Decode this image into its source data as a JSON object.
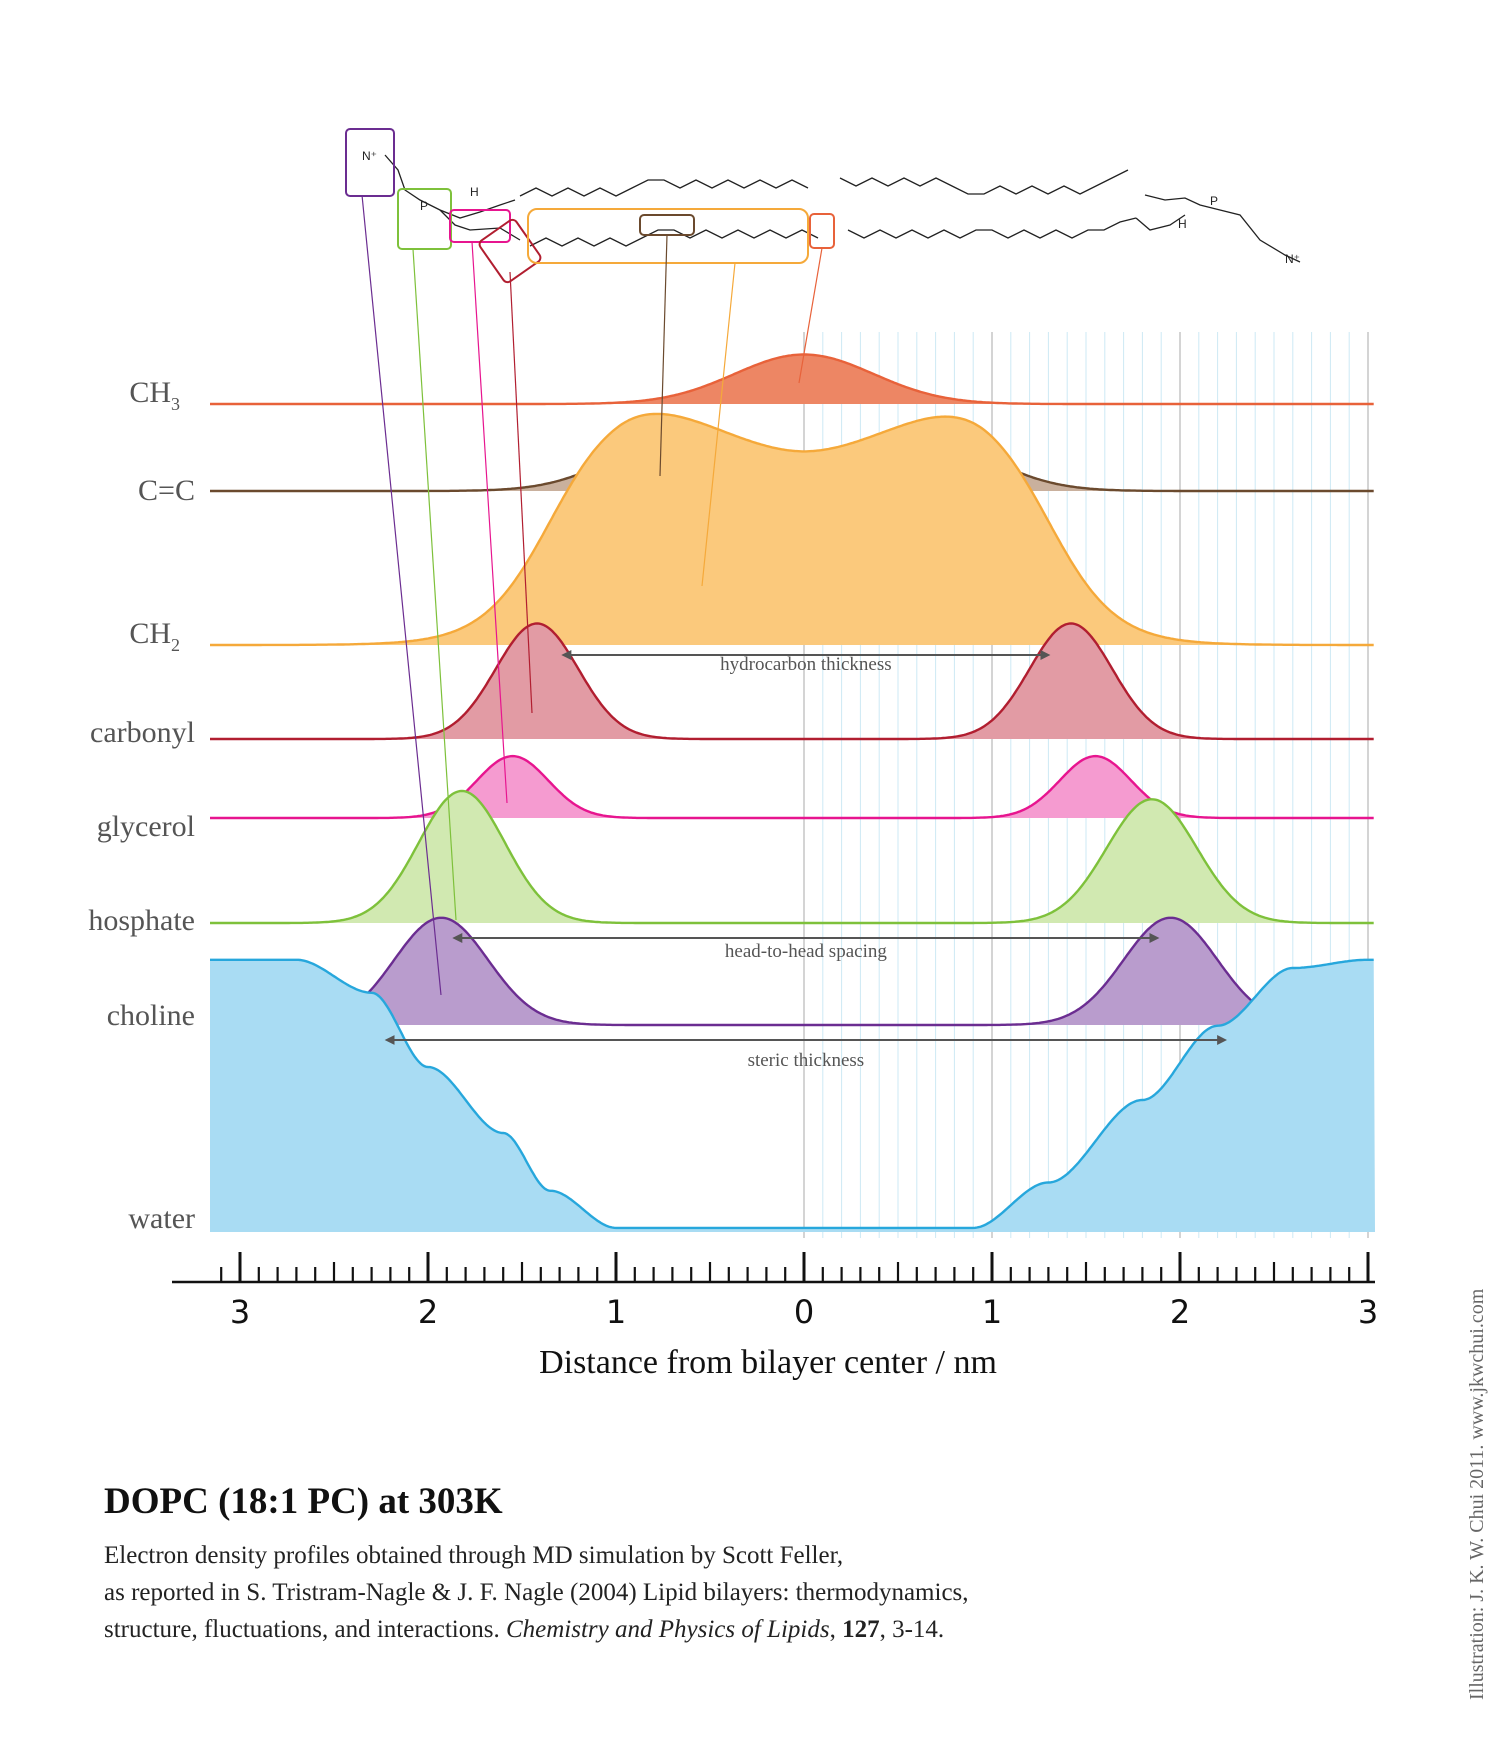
{
  "chart_data": {
    "type": "area",
    "x_axis": {
      "label": "Distance from bilayer center / nm",
      "tick_labels": [
        "3",
        "2",
        "1",
        "0",
        "1",
        "2",
        "3"
      ],
      "range": [
        -3.1,
        3.0
      ]
    },
    "series": [
      {
        "name": "CH",
        "subscript": "3",
        "color": "#e8623a",
        "fill": "#ed8664",
        "peaks": [
          {
            "center": 0.0,
            "height": 0.06,
            "width": 0.37
          }
        ]
      },
      {
        "name": "C=C",
        "color": "#6b4a2e",
        "fill": "#c9b09d",
        "peaks": [
          {
            "center": -0.65,
            "height": 0.065,
            "width": 0.36
          },
          {
            "center": 0.62,
            "height": 0.065,
            "width": 0.36
          }
        ]
      },
      {
        "name": "CH",
        "subscript": "2",
        "color": "#f5a93a",
        "fill": "#fbc97c",
        "plateau": {
          "start": -1.35,
          "end": 1.3,
          "edge_width": 0.18,
          "values": [
            [
              -1.0,
              0.3
            ],
            [
              0.0,
              0.235
            ],
            [
              1.0,
              0.3
            ]
          ]
        }
      },
      {
        "name": "carbonyl",
        "color": "#b11e30",
        "fill": "#e29ba4",
        "peaks": [
          {
            "center": -1.42,
            "height": 0.14,
            "width": 0.22
          },
          {
            "center": 1.42,
            "height": 0.14,
            "width": 0.22
          }
        ]
      },
      {
        "name": "glycerol",
        "color": "#e7158f",
        "fill": "#f59bd0",
        "peaks": [
          {
            "center": -1.55,
            "height": 0.075,
            "width": 0.19
          },
          {
            "center": 1.55,
            "height": 0.075,
            "width": 0.19
          }
        ]
      },
      {
        "name": "hosphate",
        "color": "#7ec13b",
        "fill": "#d1e9b1",
        "peaks": [
          {
            "center": -1.82,
            "height": 0.16,
            "width": 0.23
          },
          {
            "center": 1.85,
            "height": 0.15,
            "width": 0.24
          }
        ]
      },
      {
        "name": "choline",
        "color": "#6b2d91",
        "fill": "#b99ccd",
        "peaks": [
          {
            "center": -1.93,
            "height": 0.13,
            "width": 0.25
          },
          {
            "center": 1.95,
            "height": 0.13,
            "width": 0.25
          }
        ]
      },
      {
        "name": "water",
        "color": "#27a7dc",
        "fill": "#a9dcf3",
        "profile": [
          [
            -3.1,
            0.33
          ],
          [
            -2.7,
            0.33
          ],
          [
            -2.3,
            0.29
          ],
          [
            -2.0,
            0.2
          ],
          [
            -1.6,
            0.12
          ],
          [
            -1.35,
            0.05
          ],
          [
            -1.0,
            0.005
          ],
          [
            0.9,
            0.005
          ],
          [
            1.3,
            0.06
          ],
          [
            1.8,
            0.16
          ],
          [
            2.2,
            0.25
          ],
          [
            2.6,
            0.32
          ],
          [
            3.0,
            0.33
          ]
        ]
      }
    ],
    "annotations": [
      {
        "text": "hydrocarbon thickness",
        "from": -1.28,
        "to": 1.3
      },
      {
        "text": "head-to-head spacing",
        "from": -1.86,
        "to": 1.88
      },
      {
        "text": "steric thickness",
        "from": -2.22,
        "to": 2.24
      }
    ]
  },
  "caption": {
    "title": "DOPC (18:1 PC) at 303K",
    "line1": "Electron density profiles obtained through MD simulation by Scott Feller,",
    "line2": "as reported in S. Tristram-Nagle & J. F. Nagle (2004) Lipid bilayers: thermodynamics,",
    "line3_pre": "structure, fluctuations, and interactions.  ",
    "line3_journal": "Chemistry and Physics of Lipids",
    "line3_sep": ", ",
    "line3_volume": "127",
    "line3_post": ", 3-14."
  },
  "credit": "Illustration: J. K. W. Chui 2011.  www.jkwchui.com"
}
